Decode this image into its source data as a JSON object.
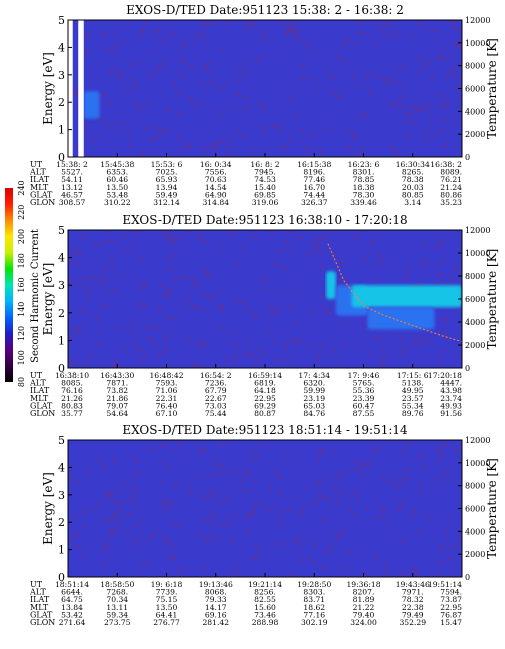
{
  "colors": {
    "background": "#3a3acc",
    "noise_red": "#aa2233",
    "frame": "#000000"
  },
  "colorbar": {
    "label": "Second Harmonic Current",
    "ticks": [
      "80",
      "100",
      "120",
      "140",
      "160",
      "180",
      "200",
      "220",
      "240"
    ],
    "stops": [
      "#000000",
      "#330044",
      "#5a0080",
      "#1e1ec8",
      "#0064ff",
      "#00b4ff",
      "#00e6b4",
      "#00e600",
      "#c8f000",
      "#ffe600",
      "#ff8c00",
      "#ff1e00",
      "#dc0000"
    ]
  },
  "chart_data": [
    {
      "type": "heatmap",
      "title": "EXOS-D/TED   Date:951123  15:38: 2 - 16:38: 2",
      "ylabel": "Energy [eV]",
      "y2label": "Temperature [K]",
      "ylim": [
        0,
        5
      ],
      "yticks": [
        "0",
        "1",
        "2",
        "3",
        "4",
        "5"
      ],
      "y2lim": [
        0,
        12000
      ],
      "y2ticks": [
        "0",
        "2000",
        "4000",
        "6000",
        "8000",
        "10000",
        "12000"
      ],
      "data_gaps": [
        {
          "t_start": 0.0,
          "t_end": 0.012
        },
        {
          "t_start": 0.026,
          "t_end": 0.04
        }
      ],
      "features": [
        {
          "t_start": 0.04,
          "t_end": 0.08,
          "e_low": 1.4,
          "e_high": 2.4,
          "level": "light-blue"
        }
      ],
      "temperature_trace": [],
      "table": {
        "row_labels": [
          "UT",
          "ALT",
          "ILAT",
          "MLT",
          "GLAT",
          "GLON"
        ],
        "columns": [
          [
            "15:38: 2",
            "5527.",
            "54.11",
            "13.12",
            "46.57",
            "308.57"
          ],
          [
            "15:45:38",
            "6353.",
            "60.46",
            "13.50",
            "53.48",
            "310.22"
          ],
          [
            "15:53: 6",
            "7025.",
            "65.93",
            "13.94",
            "59.49",
            "312.14"
          ],
          [
            "16: 0:34",
            "7556.",
            "70.63",
            "14.54",
            "64.90",
            "314.84"
          ],
          [
            "16: 8: 2",
            "7945.",
            "74.53",
            "15.40",
            "69.85",
            "319.06"
          ],
          [
            "16:15:38",
            "8196.",
            "77.46",
            "16.70",
            "74.44",
            "326.37"
          ],
          [
            "16:23: 6",
            "8301.",
            "78.85",
            "18.38",
            "78.30",
            "339.46"
          ],
          [
            "16:30:34",
            "8265.",
            "78.38",
            "20.03",
            "80.85",
            "3.14"
          ],
          [
            "16:38: 2",
            "8089.",
            "76.21",
            "21.24",
            "80.86",
            "35.23"
          ]
        ]
      }
    },
    {
      "type": "heatmap",
      "title": "EXOS-D/TED   Date:951123  16:38:10 - 17:20:18",
      "ylabel": "Energy [eV]",
      "y2label": "Temperature [K]",
      "ylim": [
        0,
        5
      ],
      "yticks": [
        "0",
        "1",
        "2",
        "3",
        "4",
        "5"
      ],
      "y2lim": [
        0,
        12000
      ],
      "y2ticks": [
        "0",
        "2000",
        "4000",
        "6000",
        "8000",
        "10000",
        "12000"
      ],
      "data_gaps": [],
      "features": [
        {
          "t_start": 0.655,
          "t_end": 0.68,
          "e_low": 2.5,
          "e_high": 3.5,
          "level": "cyan"
        },
        {
          "t_start": 0.68,
          "t_end": 0.76,
          "e_low": 1.9,
          "e_high": 3.0,
          "level": "light-blue"
        },
        {
          "t_start": 0.72,
          "t_end": 1.0,
          "e_low": 2.2,
          "e_high": 3.0,
          "level": "cyan"
        },
        {
          "t_start": 0.76,
          "t_end": 0.93,
          "e_low": 1.4,
          "e_high": 2.2,
          "level": "light-blue"
        }
      ],
      "temperature_trace": [
        {
          "t": 0.66,
          "k": 10800
        },
        {
          "t": 0.7,
          "k": 7600
        },
        {
          "t": 0.75,
          "k": 5400
        },
        {
          "t": 0.8,
          "k": 4600
        },
        {
          "t": 0.85,
          "k": 4000
        },
        {
          "t": 0.9,
          "k": 3400
        },
        {
          "t": 0.95,
          "k": 2800
        },
        {
          "t": 1.0,
          "k": 2300
        }
      ],
      "table": {
        "row_labels": [
          "UT",
          "ALT",
          "ILAT",
          "MLT",
          "GLAT",
          "GLON"
        ],
        "columns": [
          [
            "16:38:10",
            "8085.",
            "76.16",
            "21.26",
            "80.83",
            "35.77"
          ],
          [
            "16:43:30",
            "7871.",
            "73.82",
            "21.86",
            "79.07",
            "54.64"
          ],
          [
            "16:48:42",
            "7593.",
            "71.06",
            "22.31",
            "76.40",
            "67.10"
          ],
          [
            "16:54: 2",
            "7236.",
            "67.79",
            "22.67",
            "73.03",
            "75.44"
          ],
          [
            "16:59:14",
            "6819.",
            "64.18",
            "22.95",
            "69.29",
            "80.87"
          ],
          [
            "17: 4:34",
            "6320.",
            "59.99",
            "23.19",
            "65.03",
            "84.76"
          ],
          [
            "17: 9:46",
            "5765.",
            "55.36",
            "23.39",
            "60.47",
            "87.55"
          ],
          [
            "17:15: 6",
            "5138.",
            "49.95",
            "23.57",
            "55.34",
            "89.76"
          ],
          [
            "17:20:18",
            "4447.",
            "43.98",
            "23.74",
            "49.93",
            "91.56"
          ]
        ]
      }
    },
    {
      "type": "heatmap",
      "title": "EXOS-D/TED   Date:951123  18:51:14 - 19:51:14",
      "ylabel": "Energy [eV]",
      "y2label": "Temperature [K]",
      "ylim": [
        0,
        5
      ],
      "yticks": [
        "0",
        "1",
        "2",
        "3",
        "4",
        "5"
      ],
      "y2lim": [
        0,
        12000
      ],
      "y2ticks": [
        "0",
        "2000",
        "4000",
        "6000",
        "8000",
        "10000",
        "12000"
      ],
      "data_gaps": [],
      "features": [],
      "temperature_trace": [],
      "table": {
        "row_labels": [
          "UT",
          "ALT",
          "ILAT",
          "MLT",
          "GLAT",
          "GLON"
        ],
        "columns": [
          [
            "18:51:14",
            "6644.",
            "64.75",
            "13.84",
            "53.42",
            "271.64"
          ],
          [
            "18:58:50",
            "7268.",
            "70.34",
            "13.11",
            "59.34",
            "273.75"
          ],
          [
            "19: 6:18",
            "7739.",
            "75.15",
            "13.50",
            "64.41",
            "276.77"
          ],
          [
            "19:13:46",
            "8068.",
            "79.33",
            "14.17",
            "69.16",
            "281.42"
          ],
          [
            "19:21:14",
            "8256.",
            "82.55",
            "15.60",
            "73.46",
            "288.98"
          ],
          [
            "19:28:50",
            "8303.",
            "83.71",
            "18.62",
            "77.16",
            "302.19"
          ],
          [
            "19:36:18",
            "8207.",
            "81.89",
            "21.22",
            "79.40",
            "324.00"
          ],
          [
            "19:43:46",
            "7971.",
            "78.32",
            "22.38",
            "79.49",
            "352.29"
          ],
          [
            "19:51:14",
            "7594.",
            "73.87",
            "22.95",
            "76.87",
            "15.47"
          ]
        ]
      }
    }
  ]
}
